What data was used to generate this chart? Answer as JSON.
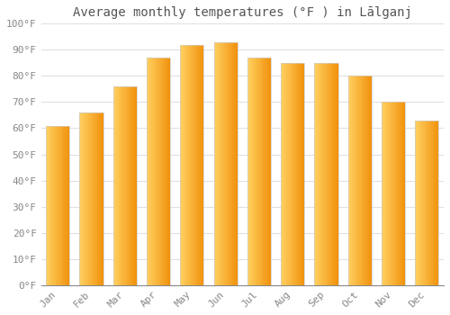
{
  "title": "Average monthly temperatures (°F ) in Lālganj",
  "months": [
    "Jan",
    "Feb",
    "Mar",
    "Apr",
    "May",
    "Jun",
    "Jul",
    "Aug",
    "Sep",
    "Oct",
    "Nov",
    "Dec"
  ],
  "values": [
    61,
    66,
    76,
    87,
    92,
    93,
    87,
    85,
    85,
    80,
    70,
    63
  ],
  "bar_color": "#F5A623",
  "bar_left_highlight": "#FFD060",
  "ylim": [
    0,
    100
  ],
  "yticks": [
    0,
    10,
    20,
    30,
    40,
    50,
    60,
    70,
    80,
    90,
    100
  ],
  "ytick_labels": [
    "0°F",
    "10°F",
    "20°F",
    "30°F",
    "40°F",
    "50°F",
    "60°F",
    "70°F",
    "80°F",
    "90°F",
    "100°F"
  ],
  "background_color": "#ffffff",
  "grid_color": "#e0e0e0",
  "title_fontsize": 10,
  "tick_fontsize": 8,
  "bar_edge_color": "#cccccc",
  "bar_width": 0.7
}
